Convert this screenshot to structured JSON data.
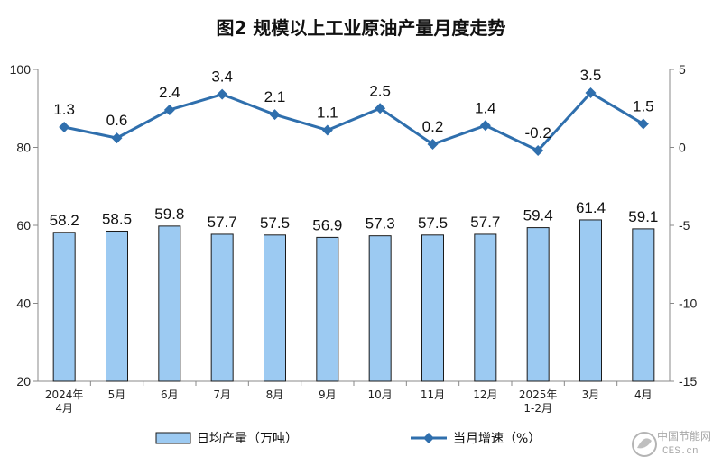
{
  "chart_data": {
    "type": "bar",
    "title": "图2  规模以上工业原油产量月度走势",
    "categories": [
      [
        "2024年",
        "4月"
      ],
      [
        "5月"
      ],
      [
        "6月"
      ],
      [
        "7月"
      ],
      [
        "8月"
      ],
      [
        "9月"
      ],
      [
        "10月"
      ],
      [
        "11月"
      ],
      [
        "12月"
      ],
      [
        "2025年",
        "1-2月"
      ],
      [
        "3月"
      ],
      [
        "4月"
      ]
    ],
    "series": [
      {
        "name": "日均产量（万吨）",
        "type": "bar",
        "axis": "left",
        "color": "#9ccaf2",
        "values": [
          58.2,
          58.5,
          59.8,
          57.7,
          57.5,
          56.9,
          57.3,
          57.5,
          57.7,
          59.4,
          61.4,
          59.1
        ],
        "labels": [
          "58.2",
          "58.5",
          "59.8",
          "57.7",
          "57.5",
          "56.9",
          "57.3",
          "57.5",
          "57.7",
          "59.4",
          "61.4",
          "59.1"
        ]
      },
      {
        "name": "当月增速（%）",
        "type": "line",
        "axis": "right",
        "color": "#2f6fad",
        "marker": "diamond",
        "values": [
          1.3,
          0.6,
          2.4,
          3.4,
          2.1,
          1.1,
          2.5,
          0.2,
          1.4,
          -0.2,
          3.5,
          1.5
        ],
        "labels": [
          "1.3",
          "0.6",
          "2.4",
          "3.4",
          "2.1",
          "1.1",
          "2.5",
          "0.2",
          "1.4",
          "-0.2",
          "3.5",
          "1.5"
        ]
      }
    ],
    "left_axis": {
      "ylim": [
        20,
        100
      ],
      "ticks": [
        "20",
        "40",
        "60",
        "80",
        "100"
      ],
      "tick_values": [
        20,
        40,
        60,
        80,
        100
      ]
    },
    "right_axis": {
      "ylim": [
        -15,
        5
      ],
      "ticks": [
        "-15",
        "-10",
        "-5",
        "0",
        "5"
      ],
      "tick_values": [
        -15,
        -10,
        -5,
        0,
        5
      ]
    },
    "grid": false,
    "legend_position": "bottom"
  },
  "watermark": {
    "text": "中国节能网",
    "sub": "CES.cn"
  }
}
